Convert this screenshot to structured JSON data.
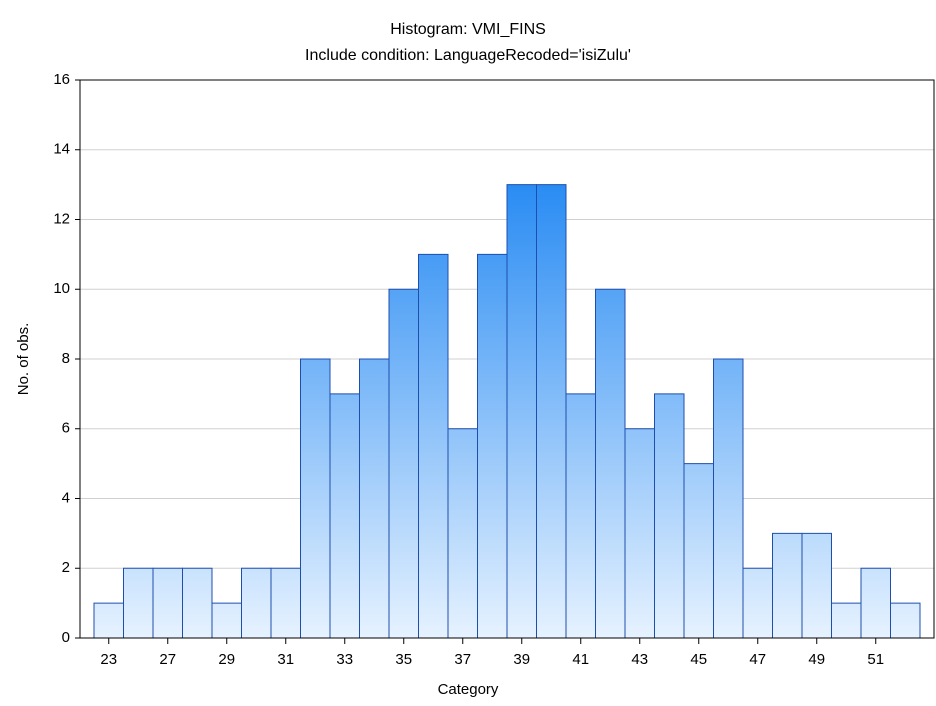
{
  "chart_data": {
    "type": "bar",
    "title": "Histogram: VMI_FINS",
    "subtitle": "Include condition: LanguageRecoded='isiZulu'",
    "x_label": "Category",
    "y_label": "No. of obs.",
    "categories": [
      "23",
      null,
      "27",
      null,
      "29",
      null,
      "31",
      null,
      "33",
      null,
      "35",
      null,
      "37",
      null,
      "39",
      null,
      "41",
      null,
      "43",
      null,
      "45",
      null,
      "47",
      null,
      "49",
      null,
      "51",
      null
    ],
    "values": [
      1,
      2,
      2,
      2,
      1,
      2,
      2,
      8,
      7,
      8,
      10,
      11,
      6,
      11,
      13,
      13,
      7,
      10,
      6,
      7,
      5,
      8,
      2,
      3,
      3,
      1,
      2,
      1
    ],
    "color": "#3f9af5",
    "edge_color": "#1f4fae",
    "ylim": [
      0,
      16
    ],
    "yticks": [
      0,
      2,
      4,
      6,
      8,
      10,
      12,
      14,
      16
    ],
    "grid": true
  }
}
